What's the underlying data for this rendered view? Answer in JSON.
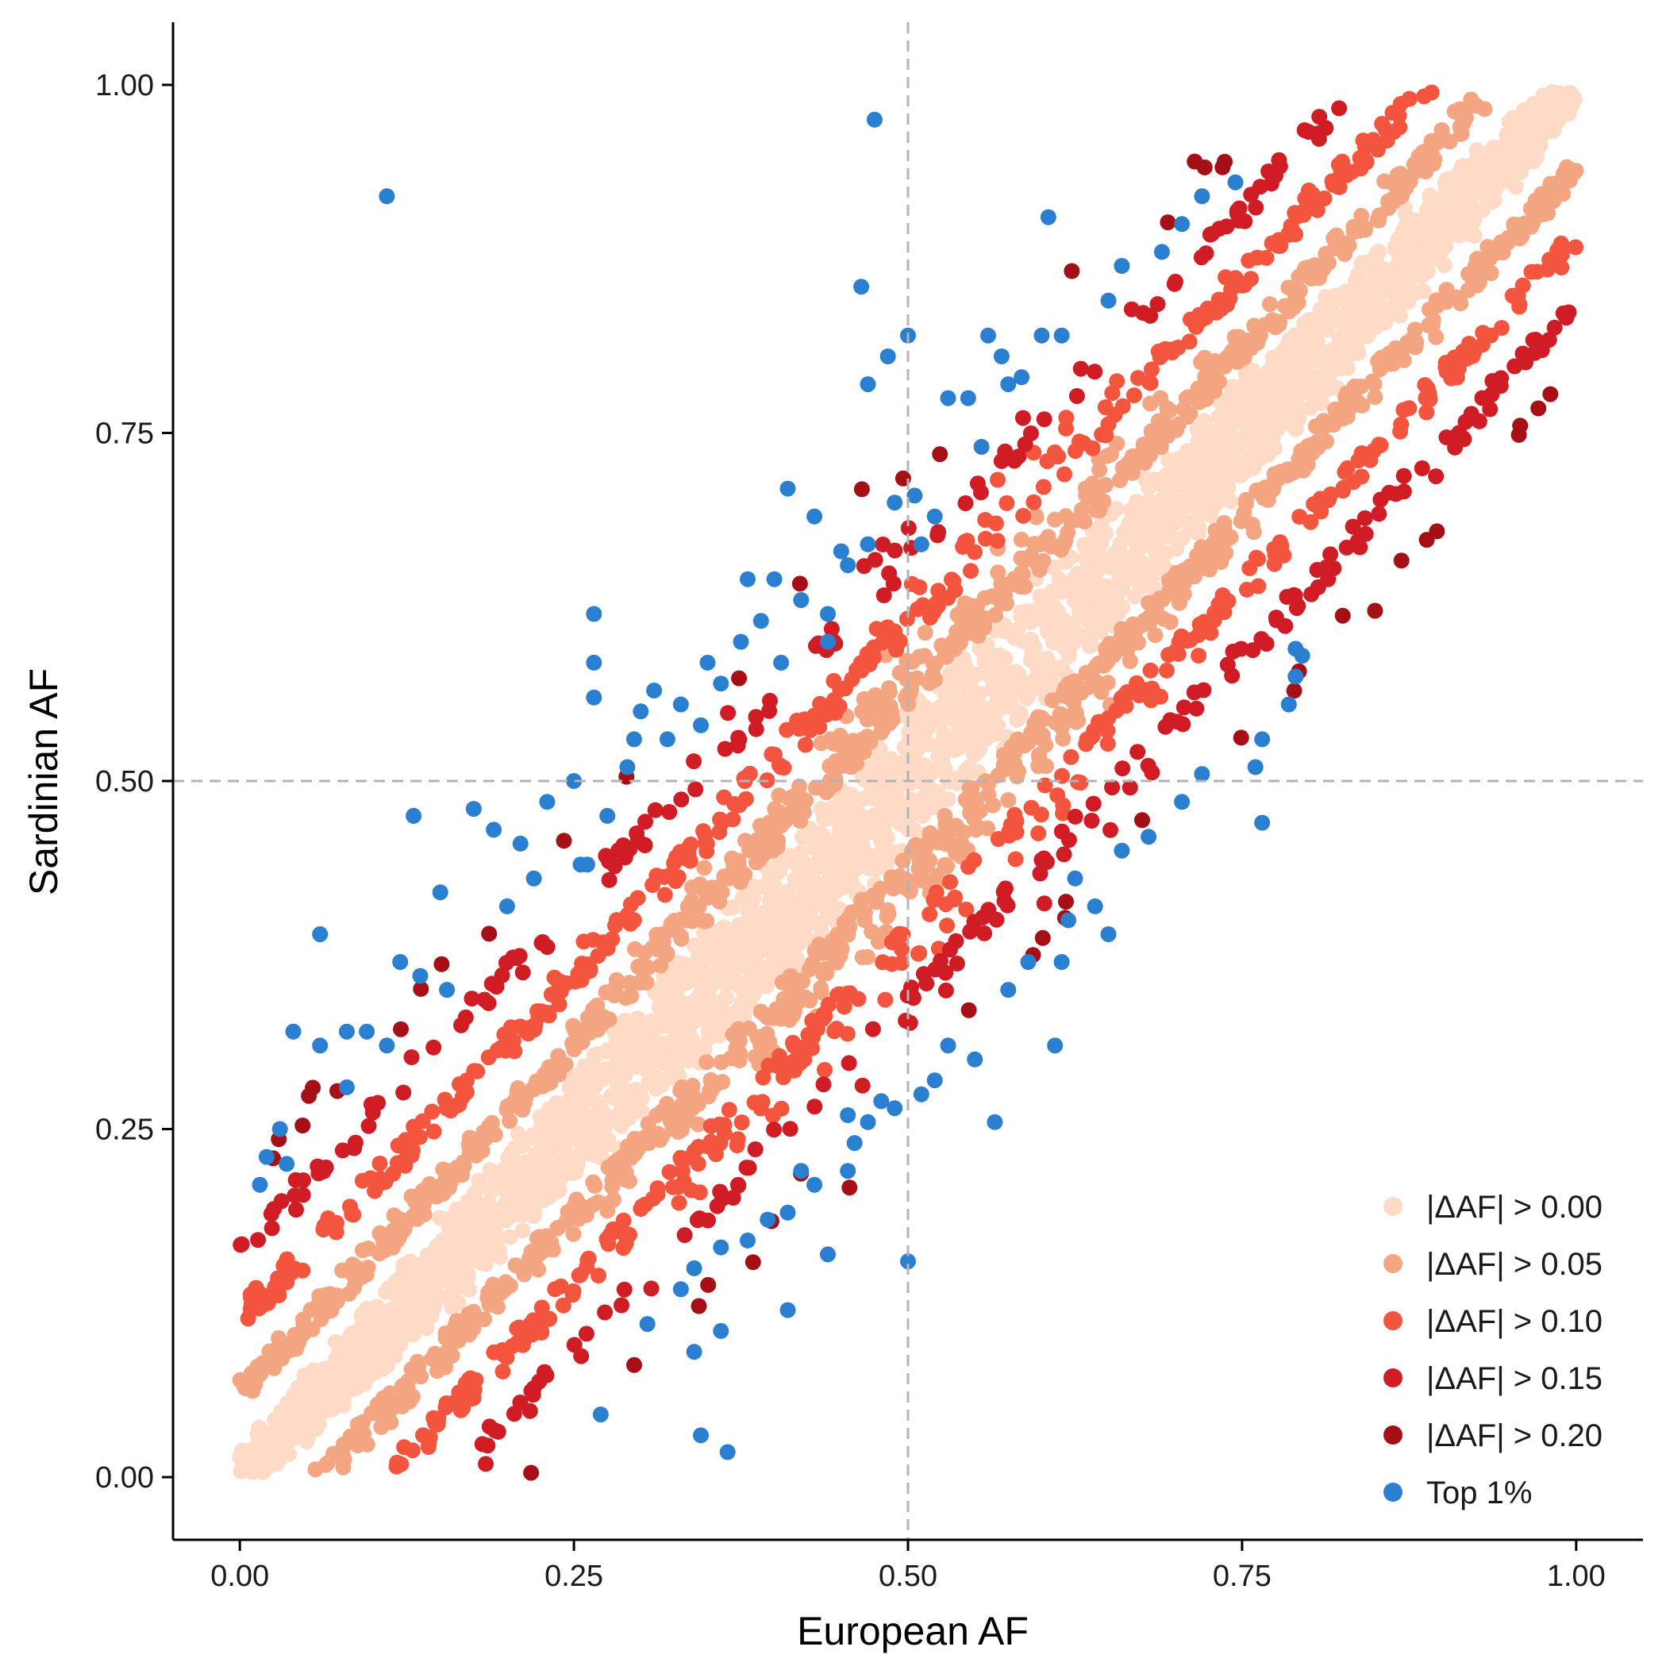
{
  "chart_data": {
    "type": "scatter",
    "title": "",
    "xlabel": "European AF",
    "ylabel": "Sardinian AF",
    "xlim": [
      -0.05,
      1.05
    ],
    "ylim": [
      -0.045,
      1.045
    ],
    "x_ticks": [
      0.0,
      0.25,
      0.5,
      0.75,
      1.0
    ],
    "x_tick_labels": [
      "0.00",
      "0.25",
      "0.50",
      "0.75",
      "1.00"
    ],
    "y_ticks": [
      0.0,
      0.25,
      0.5,
      0.75,
      1.0
    ],
    "y_tick_labels": [
      "0.00",
      "0.25",
      "0.50",
      "0.75",
      "1.00"
    ],
    "reference_lines": {
      "x": 0.5,
      "y": 0.5,
      "style": "dashed",
      "color": "#b3b3b3"
    },
    "grid": false,
    "legend_position": "bottom-right",
    "series": [
      {
        "name": "|ΔAF| > 0.00",
        "color": "#FDDBC7",
        "band": [
          0.0,
          0.05
        ]
      },
      {
        "name": "|ΔAF| > 0.05",
        "color": "#F4A582",
        "band": [
          0.05,
          0.1
        ]
      },
      {
        "name": "|ΔAF| > 0.10",
        "color": "#F4553E",
        "band": [
          0.1,
          0.15
        ]
      },
      {
        "name": "|ΔAF| > 0.15",
        "color": "#D01C25",
        "band": [
          0.15,
          0.2
        ]
      },
      {
        "name": "|ΔAF| > 0.20",
        "color": "#A50F15",
        "band": [
          0.2,
          1.0
        ]
      },
      {
        "name": "Top 1%",
        "color": "#2B7FD0"
      }
    ],
    "top1_points": [
      [
        0.11,
        0.92
      ],
      [
        0.475,
        0.975
      ],
      [
        0.465,
        0.855
      ],
      [
        0.5,
        0.82
      ],
      [
        0.605,
        0.905
      ],
      [
        0.47,
        0.785
      ],
      [
        0.485,
        0.805
      ],
      [
        0.56,
        0.82
      ],
      [
        0.57,
        0.805
      ],
      [
        0.53,
        0.775
      ],
      [
        0.545,
        0.775
      ],
      [
        0.555,
        0.74
      ],
      [
        0.49,
        0.7
      ],
      [
        0.505,
        0.705
      ],
      [
        0.41,
        0.71
      ],
      [
        0.43,
        0.69
      ],
      [
        0.45,
        0.665
      ],
      [
        0.38,
        0.645
      ],
      [
        0.4,
        0.645
      ],
      [
        0.35,
        0.585
      ],
      [
        0.33,
        0.555
      ],
      [
        0.31,
        0.565
      ],
      [
        0.265,
        0.62
      ],
      [
        0.265,
        0.585
      ],
      [
        0.265,
        0.56
      ],
      [
        0.3,
        0.55
      ],
      [
        0.295,
        0.53
      ],
      [
        0.25,
        0.5
      ],
      [
        0.21,
        0.455
      ],
      [
        0.175,
        0.48
      ],
      [
        0.13,
        0.475
      ],
      [
        0.15,
        0.42
      ],
      [
        0.12,
        0.37
      ],
      [
        0.095,
        0.32
      ],
      [
        0.06,
        0.39
      ],
      [
        0.04,
        0.32
      ],
      [
        0.06,
        0.31
      ],
      [
        0.08,
        0.32
      ],
      [
        0.11,
        0.31
      ],
      [
        0.08,
        0.28
      ],
      [
        0.03,
        0.25
      ],
      [
        0.02,
        0.23
      ],
      [
        0.035,
        0.225
      ],
      [
        0.015,
        0.21
      ],
      [
        0.2,
        0.41
      ],
      [
        0.22,
        0.43
      ],
      [
        0.23,
        0.485
      ],
      [
        0.255,
        0.44
      ],
      [
        0.29,
        0.51
      ],
      [
        0.32,
        0.53
      ],
      [
        0.345,
        0.54
      ],
      [
        0.36,
        0.57
      ],
      [
        0.375,
        0.6
      ],
      [
        0.39,
        0.615
      ],
      [
        0.42,
        0.63
      ],
      [
        0.44,
        0.62
      ],
      [
        0.455,
        0.655
      ],
      [
        0.47,
        0.67
      ],
      [
        0.51,
        0.67
      ],
      [
        0.52,
        0.69
      ],
      [
        0.44,
        0.6
      ],
      [
        0.405,
        0.585
      ],
      [
        0.155,
        0.35
      ],
      [
        0.135,
        0.36
      ],
      [
        0.48,
        0.27
      ],
      [
        0.49,
        0.265
      ],
      [
        0.51,
        0.275
      ],
      [
        0.52,
        0.285
      ],
      [
        0.53,
        0.31
      ],
      [
        0.55,
        0.3
      ],
      [
        0.565,
        0.255
      ],
      [
        0.575,
        0.35
      ],
      [
        0.59,
        0.37
      ],
      [
        0.615,
        0.37
      ],
      [
        0.61,
        0.31
      ],
      [
        0.62,
        0.4
      ],
      [
        0.625,
        0.43
      ],
      [
        0.64,
        0.41
      ],
      [
        0.65,
        0.39
      ],
      [
        0.66,
        0.45
      ],
      [
        0.68,
        0.46
      ],
      [
        0.765,
        0.47
      ],
      [
        0.76,
        0.51
      ],
      [
        0.765,
        0.53
      ],
      [
        0.785,
        0.555
      ],
      [
        0.79,
        0.575
      ],
      [
        0.795,
        0.59
      ],
      [
        0.79,
        0.595
      ],
      [
        0.72,
        0.505
      ],
      [
        0.705,
        0.485
      ],
      [
        0.5,
        0.155
      ],
      [
        0.44,
        0.16
      ],
      [
        0.41,
        0.12
      ],
      [
        0.36,
        0.105
      ],
      [
        0.34,
        0.09
      ],
      [
        0.365,
        0.018
      ],
      [
        0.345,
        0.03
      ],
      [
        0.27,
        0.045
      ],
      [
        0.305,
        0.11
      ],
      [
        0.36,
        0.165
      ],
      [
        0.38,
        0.17
      ],
      [
        0.395,
        0.185
      ],
      [
        0.41,
        0.19
      ],
      [
        0.43,
        0.21
      ],
      [
        0.455,
        0.22
      ],
      [
        0.46,
        0.24
      ],
      [
        0.47,
        0.255
      ],
      [
        0.455,
        0.26
      ],
      [
        0.42,
        0.22
      ],
      [
        0.34,
        0.15
      ],
      [
        0.33,
        0.135
      ],
      [
        0.72,
        0.92
      ],
      [
        0.705,
        0.9
      ],
      [
        0.69,
        0.88
      ],
      [
        0.66,
        0.87
      ],
      [
        0.65,
        0.845
      ],
      [
        0.615,
        0.82
      ],
      [
        0.6,
        0.82
      ],
      [
        0.585,
        0.79
      ],
      [
        0.575,
        0.785
      ],
      [
        0.745,
        0.93
      ],
      [
        0.275,
        0.475
      ],
      [
        0.26,
        0.44
      ],
      [
        0.19,
        0.465
      ]
    ]
  },
  "legend": {
    "items": [
      {
        "label": "|ΔAF| > 0.00",
        "color": "#FDDBC7"
      },
      {
        "label": "|ΔAF| > 0.05",
        "color": "#F4A582"
      },
      {
        "label": "|ΔAF| > 0.10",
        "color": "#F4553E"
      },
      {
        "label": "|ΔAF| > 0.15",
        "color": "#D01C25"
      },
      {
        "label": "|ΔAF| > 0.20",
        "color": "#A50F15"
      },
      {
        "label": "Top 1%",
        "color": "#2B7FD0"
      }
    ]
  }
}
